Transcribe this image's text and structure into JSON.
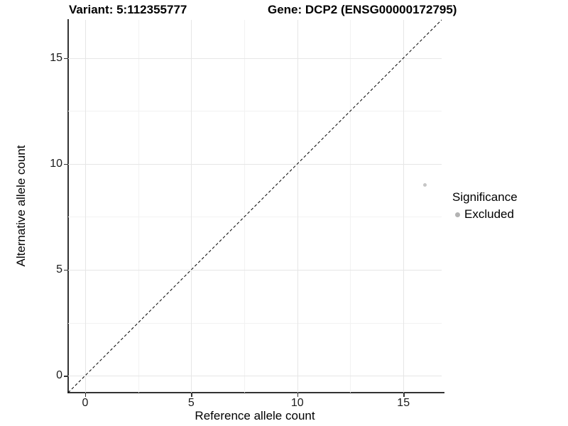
{
  "header": {
    "variant_title": "Variant: 5:112355777",
    "gene_title": "Gene: DCP2 (ENSG00000172795)"
  },
  "chart_data": {
    "type": "scatter",
    "xlabel": "Reference allele count",
    "ylabel": "Alternative allele count",
    "xlim": [
      -0.8,
      16.8
    ],
    "ylim": [
      -0.8,
      16.8
    ],
    "x_ticks": [
      0,
      5,
      10,
      15
    ],
    "y_ticks": [
      0,
      5,
      10,
      15
    ],
    "x_minor_ticks": [
      2.5,
      7.5,
      12.5
    ],
    "y_minor_ticks": [
      2.5,
      7.5,
      12.5
    ],
    "grid": "major and minor gridlines, white background",
    "legend_position": "right",
    "points": [
      {
        "x": 16,
        "y": 9,
        "significance": "Excluded"
      }
    ],
    "identity_line": {
      "slope": 1,
      "intercept": 0,
      "style": "dashed",
      "color": "#000000"
    },
    "legend": {
      "title": "Significance",
      "items": [
        {
          "label": "Excluded",
          "color": "#bdbdbd"
        }
      ]
    }
  },
  "colors": {
    "point": "#c6c6c6",
    "legend_dot": "#b3b3b3",
    "grid_major": "#e6e6e6",
    "grid_minor": "#f2f2f2",
    "axis_line": "#333333",
    "dashed_line": "#000000",
    "text": "#000000"
  }
}
